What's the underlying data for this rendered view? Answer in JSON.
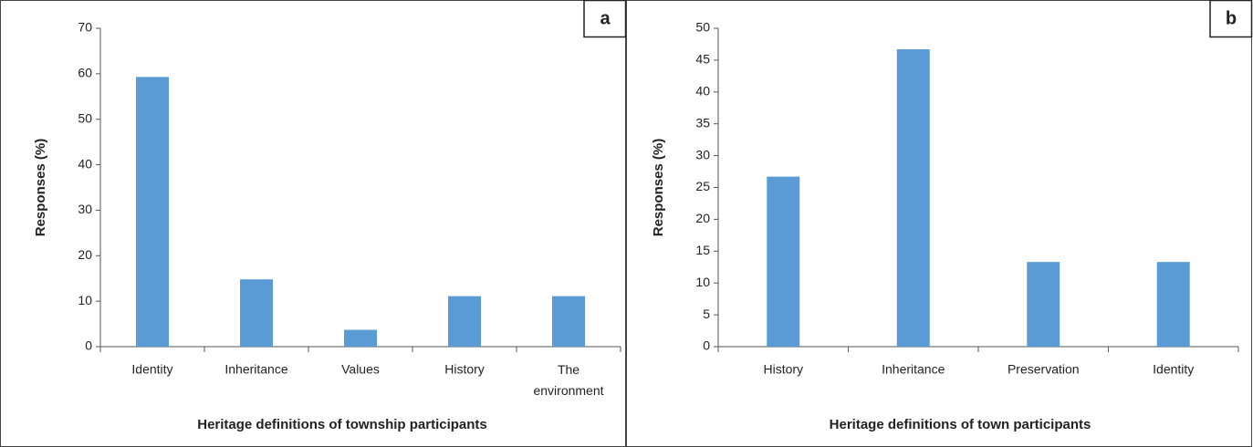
{
  "chart_data": [
    {
      "type": "bar",
      "label": "a",
      "xlabel": "Heritage definitions of township participants",
      "ylabel": "Responses (%)",
      "categories": [
        "Identity",
        "Inheritance",
        "Values",
        "History",
        "The environment"
      ],
      "values": [
        59.3,
        14.8,
        3.7,
        11.1,
        11.1
      ],
      "color": "#5b9bd5",
      "ylim": [
        0,
        70
      ],
      "yticks": [
        0,
        10,
        20,
        30,
        40,
        50,
        60,
        70
      ]
    },
    {
      "type": "bar",
      "label": "b",
      "xlabel": "Heritage definitions of town participants",
      "ylabel": "Responses (%)",
      "categories": [
        "History",
        "Inheritance",
        "Preservation",
        "Identity"
      ],
      "values": [
        26.7,
        46.7,
        13.3,
        13.3
      ],
      "color": "#5b9bd5",
      "ylim": [
        0,
        50
      ],
      "yticks": [
        0,
        5,
        10,
        15,
        20,
        25,
        30,
        35,
        40,
        45,
        50
      ]
    }
  ]
}
